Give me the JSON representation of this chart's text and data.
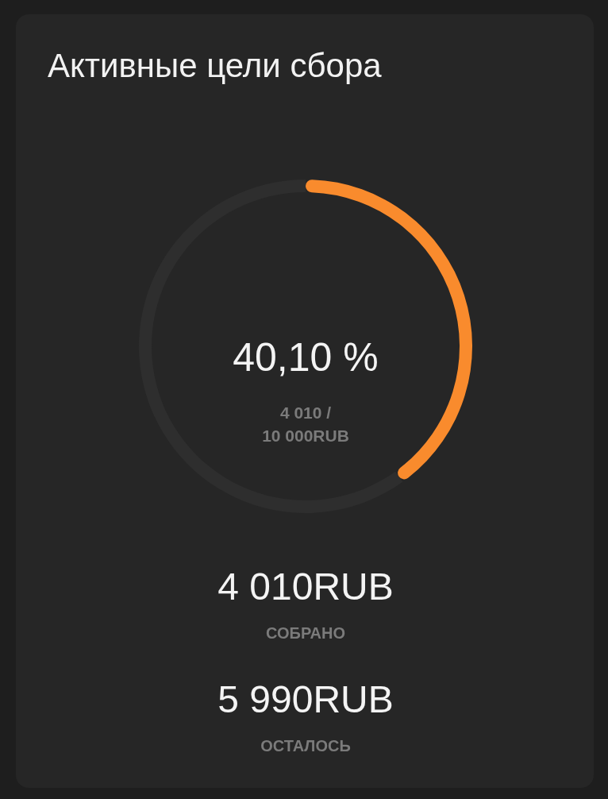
{
  "chart_data": {
    "type": "donut",
    "title": "Активные цели сбора",
    "categories": [
      null,
      null
    ],
    "values": [
      40.1,
      59.9
    ],
    "colors": [
      "#f98b2d",
      "#2e2e2e"
    ],
    "annotations": [
      "40,10 %",
      "4 010 /\n10 000RUB",
      "4 010RUB",
      "СОБРАНО",
      "5 990RUB",
      "ОСТАЛОСЬ"
    ]
  }
}
